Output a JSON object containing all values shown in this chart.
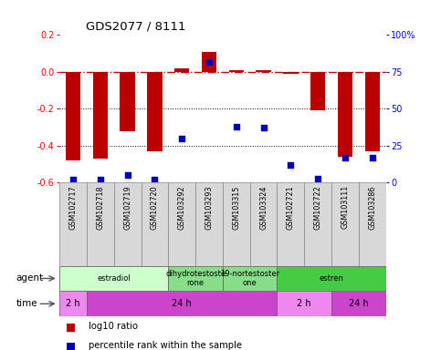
{
  "title": "GDS2077 / 8111",
  "samples": [
    "GSM102717",
    "GSM102718",
    "GSM102719",
    "GSM102720",
    "GSM103292",
    "GSM103293",
    "GSM103315",
    "GSM103324",
    "GSM102721",
    "GSM102722",
    "GSM103111",
    "GSM103286"
  ],
  "log10_ratio": [
    -0.48,
    -0.47,
    -0.32,
    -0.43,
    0.02,
    0.11,
    0.01,
    0.01,
    -0.01,
    -0.21,
    -0.46,
    -0.43
  ],
  "percentile": [
    2,
    2,
    5,
    2,
    30,
    82,
    38,
    37,
    12,
    3,
    17,
    17
  ],
  "ylim_left": [
    -0.6,
    0.2
  ],
  "ylim_right": [
    0,
    100
  ],
  "yticks_left": [
    -0.6,
    -0.4,
    -0.2,
    0.0,
    0.2
  ],
  "yticks_right": [
    0,
    25,
    50,
    75,
    100
  ],
  "bar_color": "#bb0000",
  "dot_color": "#0000bb",
  "hline_color": "#cc0000",
  "agent_groups": [
    {
      "label": "estradiol",
      "start": 0,
      "end": 4,
      "color": "#ccffcc"
    },
    {
      "label": "dihydrotestoste\nrone",
      "start": 4,
      "end": 6,
      "color": "#88dd88"
    },
    {
      "label": "19-nortestoster\none",
      "start": 6,
      "end": 8,
      "color": "#88dd88"
    },
    {
      "label": "estren",
      "start": 8,
      "end": 12,
      "color": "#44cc44"
    }
  ],
  "time_groups": [
    {
      "label": "2 h",
      "start": 0,
      "end": 1,
      "color": "#ee88ee"
    },
    {
      "label": "24 h",
      "start": 1,
      "end": 8,
      "color": "#cc44cc"
    },
    {
      "label": "2 h",
      "start": 8,
      "end": 10,
      "color": "#ee88ee"
    },
    {
      "label": "24 h",
      "start": 10,
      "end": 12,
      "color": "#cc44cc"
    }
  ],
  "legend_red": "log10 ratio",
  "legend_blue": "percentile rank within the sample"
}
